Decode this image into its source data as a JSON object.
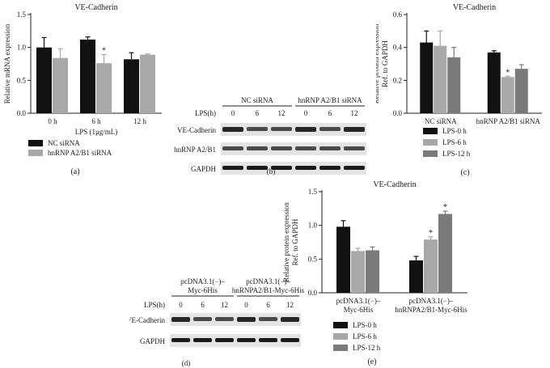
{
  "chart_data": [
    {
      "panel": "(a)",
      "type": "bar",
      "title": "VE-Cadherin",
      "ylabel": "Relative mRNA expression",
      "xlabel": "LPS (1μg/mL)",
      "ylim": [
        0,
        1.5
      ],
      "yticks": [
        "0.0",
        "0.5",
        "1.0",
        "1.5"
      ],
      "categories": [
        "0 h",
        "6 h",
        "12 h"
      ],
      "series": [
        {
          "name": "NC siRNA",
          "color": "#111111",
          "values": [
            1.0,
            1.12,
            0.82
          ],
          "errors": [
            0.15,
            0.04,
            0.1
          ]
        },
        {
          "name": "hnRNP A2/B1 siRNA",
          "color": "#a8a8a8",
          "values": [
            0.84,
            0.76,
            0.89
          ],
          "errors": [
            0.14,
            0.13,
            0.01
          ]
        }
      ],
      "annotations": [
        {
          "text": "*",
          "category": 1,
          "series": 1
        }
      ],
      "legend": "bottom"
    },
    {
      "panel": "(c)",
      "type": "bar",
      "title": "VE-Cadherin",
      "ylabel": "Relative protein expression",
      "ylabel2": "Ref. to GAPDH",
      "ylim": [
        0,
        0.6
      ],
      "yticks": [
        "0.0",
        "0.2",
        "0.4",
        "0.6"
      ],
      "categories": [
        "NC siRNA",
        "hnRNP A2/B1 siRNA"
      ],
      "series": [
        {
          "name": "LPS-0 h",
          "color": "#111111",
          "values": [
            0.43,
            0.37
          ],
          "errors": [
            0.07,
            0.01
          ]
        },
        {
          "name": "LPS-6 h",
          "color": "#a8a8a8",
          "values": [
            0.41,
            0.22
          ],
          "errors": [
            0.09,
            0.005
          ]
        },
        {
          "name": "LPS-12 h",
          "color": "#7a7a7a",
          "values": [
            0.34,
            0.27
          ],
          "errors": [
            0.06,
            0.025
          ]
        }
      ],
      "annotations": [
        {
          "text": "*",
          "category": 1,
          "series": 1
        }
      ],
      "legend": "bottom"
    },
    {
      "panel": "(e)",
      "type": "bar",
      "title": "VE-Cadherin",
      "ylabel": "Relative protein expression",
      "ylabel2": "Ref. to GAPDH",
      "ylim": [
        0,
        1.5
      ],
      "yticks": [
        "0.0",
        "0.5",
        "1.0",
        "1.5"
      ],
      "categories": [
        "pcDNA3.1(−)–|Myc-6His",
        "pcDNA3.1(−)–|hnRNPA2/B1-Myc-6His"
      ],
      "series": [
        {
          "name": "LPS-0 h",
          "color": "#111111",
          "values": [
            0.98,
            0.48
          ],
          "errors": [
            0.09,
            0.06
          ]
        },
        {
          "name": "LPS-6 h",
          "color": "#a8a8a8",
          "values": [
            0.62,
            0.79
          ],
          "errors": [
            0.04,
            0.04
          ]
        },
        {
          "name": "LPS-12 h",
          "color": "#7a7a7a",
          "values": [
            0.63,
            1.17
          ],
          "errors": [
            0.05,
            0.04
          ]
        }
      ],
      "annotations": [
        {
          "text": "*",
          "category": 1,
          "series": 1
        },
        {
          "text": "*",
          "category": 1,
          "series": 2
        }
      ],
      "legend": "bottom"
    }
  ],
  "blots": {
    "b": {
      "panel_label": "(b)",
      "lps_label": "LPS(h)",
      "group_labels": [
        "NC siRNA",
        "hnRNP A2/B1 siRNA"
      ],
      "lane_labels": [
        "0",
        "6",
        "12",
        "0",
        "6",
        "12"
      ],
      "bands": [
        "VE-Cadherin",
        "hnRNP A2/B1",
        "GAPDH"
      ]
    },
    "d": {
      "panel_label": "(d)",
      "lps_label": "LPS(h)",
      "group_labels": [
        "pcDNA3.1(−)–|Myc-6His",
        "pcDNA3.1(−)–|hnRNPA2/B1-Myc-6His"
      ],
      "lane_labels": [
        "0",
        "6",
        "12",
        "0",
        "6",
        "12"
      ],
      "bands": [
        "VE-Cadherin",
        "GAPDH"
      ]
    }
  }
}
